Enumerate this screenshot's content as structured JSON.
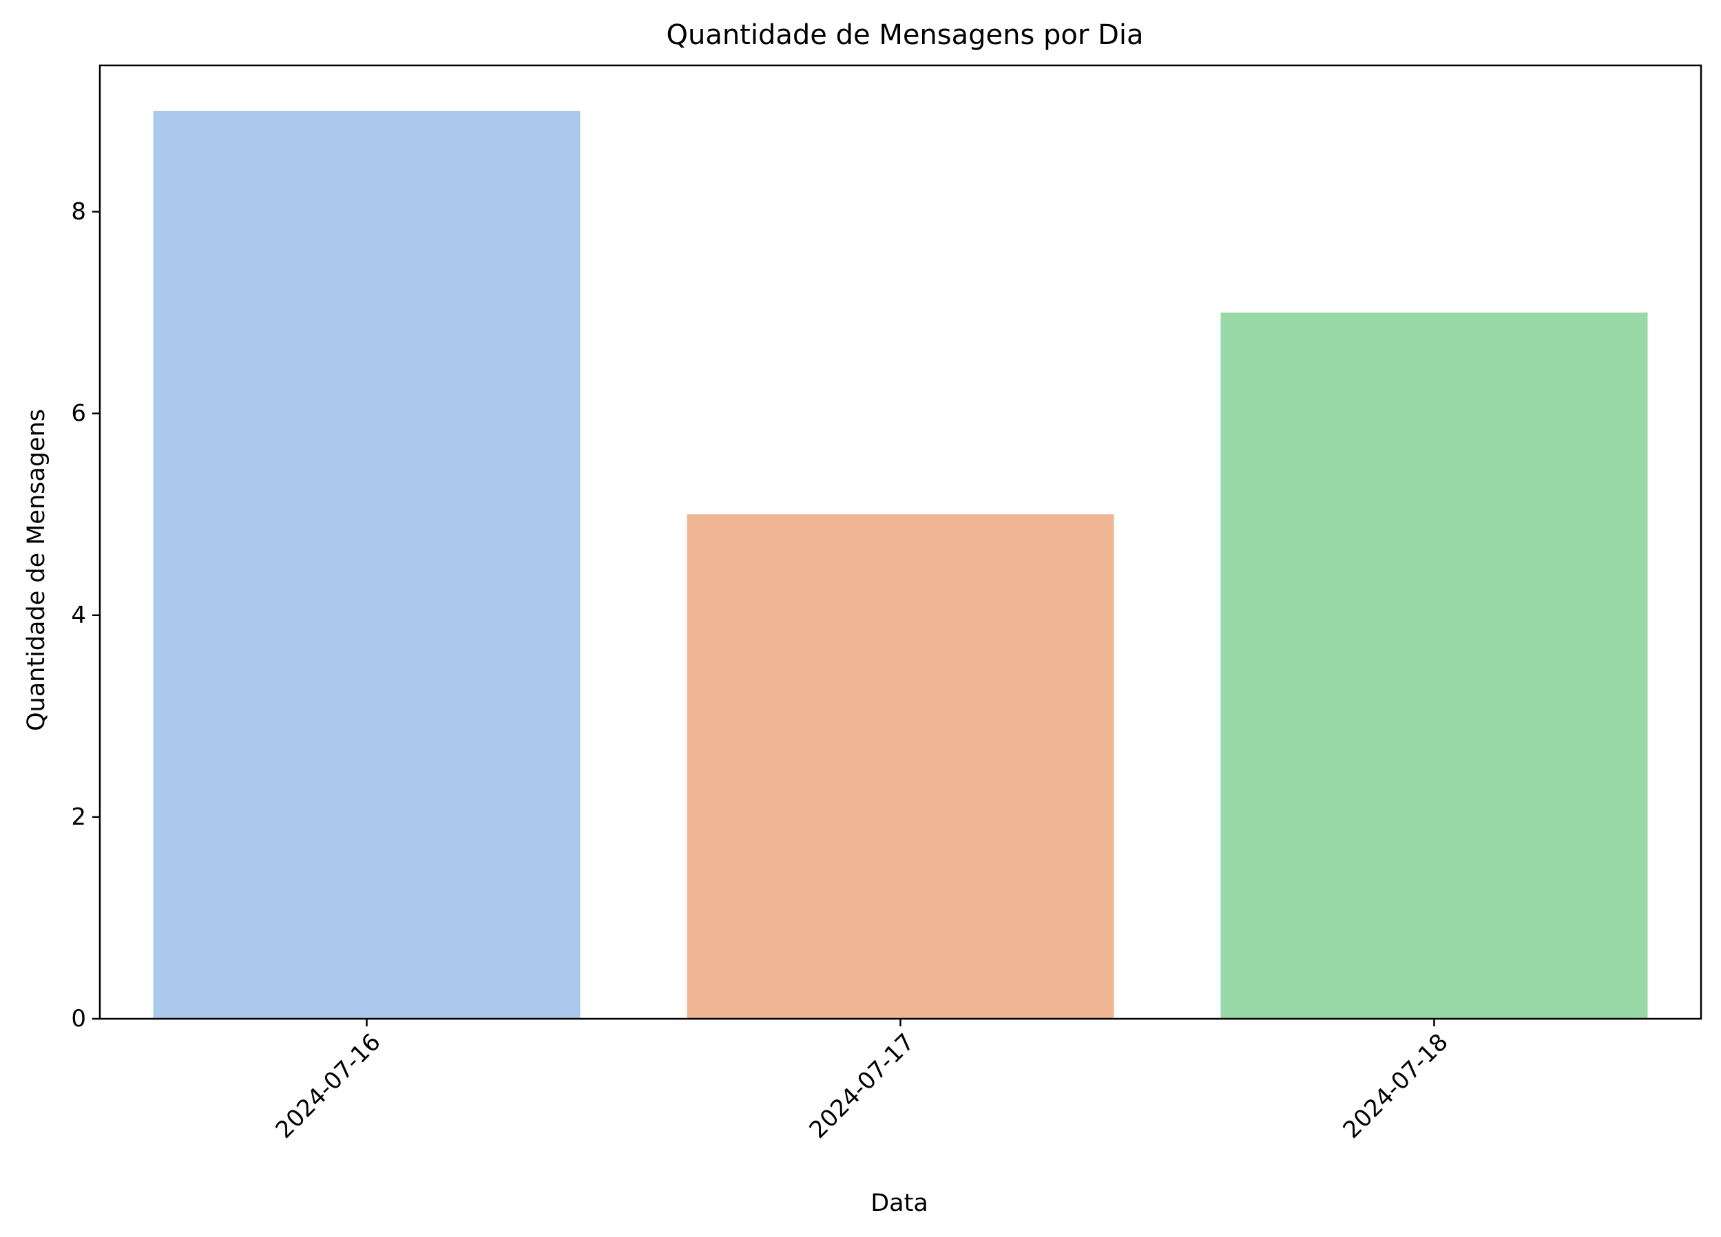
{
  "chart_data": {
    "type": "bar",
    "title": "Quantidade de Mensagens por Dia",
    "xlabel": "Data",
    "ylabel": "Quantidade de Mensagens",
    "categories": [
      "2024-07-16",
      "2024-07-17",
      "2024-07-18"
    ],
    "values": [
      9,
      5,
      7
    ],
    "colors": [
      "#abc9ec",
      "#f0b694",
      "#98d9a7"
    ],
    "ylim": [
      0,
      9.45
    ],
    "yticks": [
      0,
      2,
      4,
      6,
      8
    ],
    "xtick_rotation": 45,
    "grid": false,
    "legend": false
  }
}
